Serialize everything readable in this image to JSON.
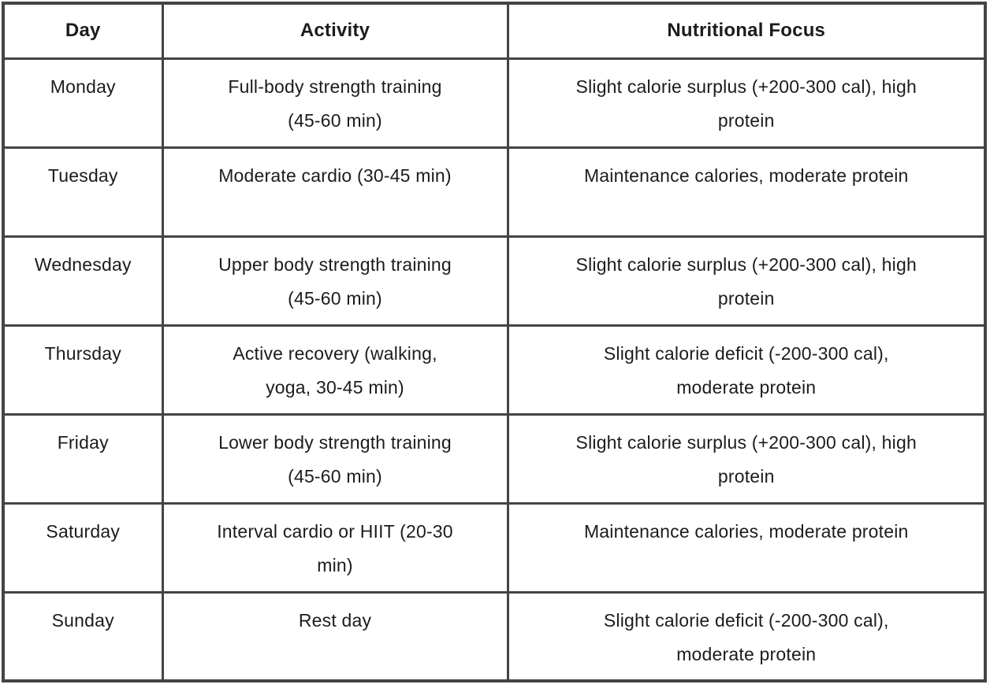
{
  "table": {
    "columns": [
      "Day",
      "Activity",
      "Nutritional Focus"
    ],
    "rows": [
      {
        "day": "Monday",
        "activity": "Full-body strength training\n(45-60 min)",
        "nutrition": "Slight calorie surplus (+200-300 cal), high\nprotein"
      },
      {
        "day": "Tuesday",
        "activity": "Moderate cardio (30-45 min)",
        "nutrition": "Maintenance calories, moderate protein"
      },
      {
        "day": "Wednesday",
        "activity": "Upper body strength training\n(45-60 min)",
        "nutrition": "Slight calorie surplus (+200-300 cal), high\nprotein"
      },
      {
        "day": "Thursday",
        "activity": "Active recovery (walking,\nyoga, 30-45 min)",
        "nutrition": "Slight calorie deficit (-200-300 cal),\nmoderate protein"
      },
      {
        "day": "Friday",
        "activity": "Lower body strength training\n(45-60 min)",
        "nutrition": "Slight calorie surplus (+200-300 cal), high\nprotein"
      },
      {
        "day": "Saturday",
        "activity": "Interval cardio or HIIT (20-30\nmin)",
        "nutrition": "Maintenance calories, moderate protein"
      },
      {
        "day": "Sunday",
        "activity": "Rest day",
        "nutrition": "Slight calorie deficit (-200-300 cal),\nmoderate protein"
      }
    ],
    "colors": {
      "border": "#424446",
      "text": "#1c1c1c",
      "background": "#ffffff"
    }
  }
}
